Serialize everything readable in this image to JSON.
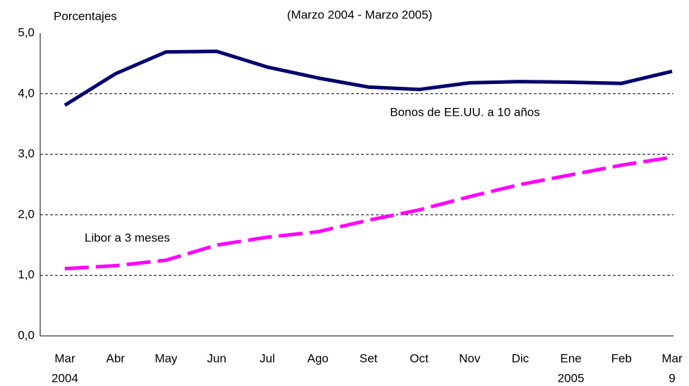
{
  "chart_data": {
    "type": "line",
    "title": "(Marzo 2004 - Marzo 2005)",
    "y_label": "Porcentajes",
    "categories": [
      [
        "Mar",
        "2004"
      ],
      [
        "Abr"
      ],
      [
        "May"
      ],
      [
        "Jun"
      ],
      [
        "Jul"
      ],
      [
        "Ago"
      ],
      [
        "Set"
      ],
      [
        "Oct"
      ],
      [
        "Nov"
      ],
      [
        "Dic"
      ],
      [
        "Ene",
        "2005"
      ],
      [
        "Feb"
      ],
      [
        "Mar",
        "9"
      ]
    ],
    "series": [
      {
        "name": "Bonos de EE.UU. a 10 años",
        "color": "#00006e",
        "dash": false,
        "values": [
          3.81,
          4.33,
          4.69,
          4.7,
          4.44,
          4.26,
          4.11,
          4.07,
          4.18,
          4.2,
          4.19,
          4.17,
          4.37
        ]
      },
      {
        "name": "Libor a 3 meses",
        "color": "#ff00ff",
        "dash": true,
        "values": [
          1.11,
          1.16,
          1.25,
          1.5,
          1.63,
          1.72,
          1.91,
          2.08,
          2.3,
          2.5,
          2.66,
          2.82,
          2.95
        ]
      }
    ],
    "ylim": [
      0,
      5
    ],
    "yticks": [
      {
        "value": 0,
        "label": "0,0"
      },
      {
        "value": 1,
        "label": "1,0"
      },
      {
        "value": 2,
        "label": "2,0"
      },
      {
        "value": 3,
        "label": "3,0"
      },
      {
        "value": 4,
        "label": "4,0"
      },
      {
        "value": 5,
        "label": "5,0"
      }
    ],
    "grid": true
  }
}
